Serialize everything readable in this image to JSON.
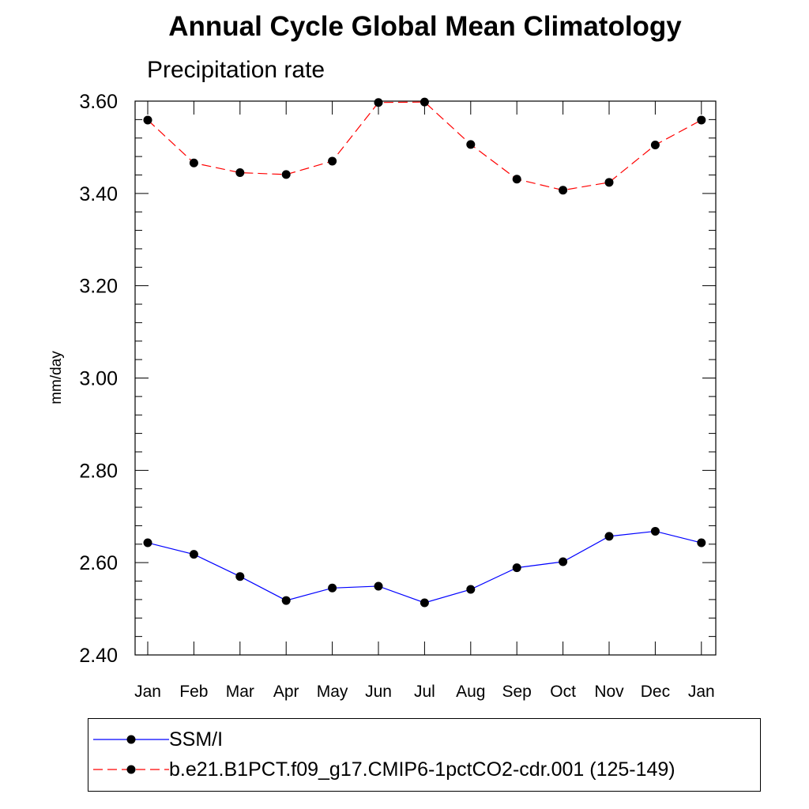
{
  "chart_data": {
    "type": "line",
    "title": "Annual Cycle Global Mean Climatology",
    "subtitle": "Precipitation rate",
    "xlabel": "",
    "ylabel": "mm/day",
    "categories": [
      "Jan",
      "Feb",
      "Mar",
      "Apr",
      "May",
      "Jun",
      "Jul",
      "Aug",
      "Sep",
      "Oct",
      "Nov",
      "Dec",
      "Jan"
    ],
    "ylim": [
      2.4,
      3.6
    ],
    "yticks": [
      "2.40",
      "2.60",
      "2.80",
      "3.00",
      "3.20",
      "3.40",
      "3.60"
    ],
    "grid": false,
    "legend_position": "bottom",
    "series": [
      {
        "name": "SSM/I",
        "color": "#0000ff",
        "line_style": "solid",
        "marker": "filled-circle",
        "values": [
          2.643,
          2.618,
          2.57,
          2.518,
          2.545,
          2.549,
          2.513,
          2.542,
          2.589,
          2.602,
          2.657,
          2.668,
          2.643
        ]
      },
      {
        "name": "b.e21.B1PCT.f09_g17.CMIP6-1pctCO2-cdr.001 (125-149)",
        "color": "#ff0000",
        "line_style": "dashed",
        "marker": "filled-circle",
        "values": [
          3.559,
          3.466,
          3.445,
          3.441,
          3.47,
          3.597,
          3.598,
          3.506,
          3.431,
          3.407,
          3.424,
          3.505,
          3.559
        ]
      }
    ]
  }
}
